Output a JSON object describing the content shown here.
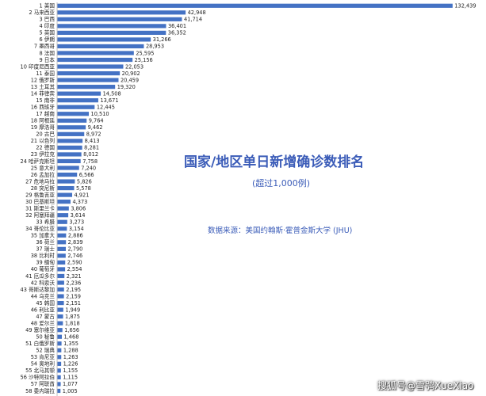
{
  "title": "国家/地区单日新增确诊数排名",
  "subtitle": "(超过1,000例)",
  "source": "数据来源：美国约翰斯·霍普金斯大学 (JHU)",
  "watermark": "搜狐号@雪鸮XueXiao",
  "colors": {
    "bar": "#4472C4",
    "text": "#3b5cb8",
    "axis": "#bfbfbf"
  },
  "chart_data": {
    "type": "bar",
    "orientation": "horizontal",
    "title": "国家/地区单日新增确诊数排名",
    "subtitle": "(超过1,000例)",
    "xlim": [
      0,
      135000
    ],
    "grid": false,
    "categories": [
      "1 美国",
      "2 马来西亚",
      "3 巴西",
      "4 印度",
      "5 英国",
      "6 伊朗",
      "7 墨西哥",
      "8 法国",
      "9 日本",
      "10 印度尼西亚",
      "11 泰国",
      "12 俄罗斯",
      "13 土耳其",
      "14 菲律宾",
      "15 南非",
      "16 西班牙",
      "17 越南",
      "18 阿根廷",
      "19 摩洛哥",
      "20 古巴",
      "21 以色列",
      "22 德国",
      "23 伊拉克",
      "24 哈萨克斯坦",
      "25 意大利",
      "26 孟加拉",
      "27 危地马拉",
      "28 突尼斯",
      "29 格鲁吉亚",
      "30 巴基斯坦",
      "31 斯里兰卡",
      "32 阿塞拜疆",
      "33 希腊",
      "34 哥伦比亚",
      "35 加拿大",
      "36 荷兰",
      "37 瑞士",
      "38 比利时",
      "39 缅甸",
      "40 葡萄牙",
      "41 厄瓜多尔",
      "42 科索沃",
      "43 哥斯达黎加",
      "44 乌克兰",
      "45 韩国",
      "46 利比亚",
      "47 蒙古",
      "48 爱尔兰",
      "49 塞尔维亚",
      "50 秘鲁",
      "51 白俄罗斯",
      "52 瑞典",
      "53 肯尼亚",
      "54 奥地利",
      "55 北马其顿",
      "56 沙特阿拉伯",
      "57 阿联酋",
      "58 委内瑞拉"
    ],
    "values": [
      132439,
      42948,
      41714,
      36401,
      36352,
      31266,
      28953,
      25595,
      25156,
      22053,
      20902,
      20459,
      19320,
      14508,
      13671,
      12445,
      10510,
      9764,
      9462,
      8972,
      8413,
      8281,
      8012,
      7758,
      7240,
      6566,
      5826,
      5578,
      4921,
      4373,
      3806,
      3614,
      3273,
      3154,
      2886,
      2839,
      2790,
      2746,
      2590,
      2554,
      2321,
      2236,
      2195,
      2159,
      2151,
      1949,
      1875,
      1818,
      1656,
      1468,
      1355,
      1288,
      1263,
      1226,
      1155,
      1115,
      1077,
      1005
    ],
    "value_labels": [
      "132,439",
      "42,948",
      "41,714",
      "36,401",
      "36,352",
      "31,266",
      "28,953",
      "25,595",
      "25,156",
      "22,053",
      "20,902",
      "20,459",
      "19,320",
      "14,508",
      "13,671",
      "12,445",
      "10,510",
      "9,764",
      "9,462",
      "8,972",
      "8,413",
      "8,281",
      "8,012",
      "7,758",
      "7,240",
      "6,566",
      "5,826",
      "5,578",
      "4,921",
      "4,373",
      "3,806",
      "3,614",
      "3,273",
      "3,154",
      "2,886",
      "2,839",
      "2,790",
      "2,746",
      "2,590",
      "2,554",
      "2,321",
      "2,236",
      "2,195",
      "2,159",
      "2,151",
      "1,949",
      "1,875",
      "1,818",
      "1,656",
      "1,468",
      "1,355",
      "1,288",
      "1,263",
      "1,226",
      "1,155",
      "1,115",
      "1,077",
      "1,005"
    ]
  }
}
